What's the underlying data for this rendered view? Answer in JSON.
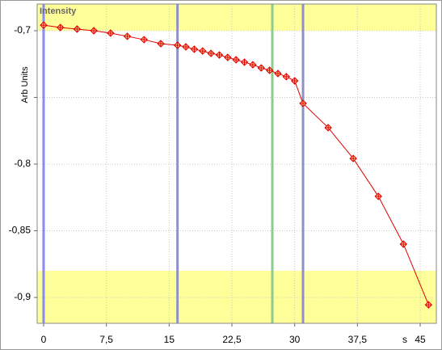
{
  "chart_data": {
    "type": "line",
    "title": "Intensity",
    "ylabel": "Arb Units",
    "xlabel": "s",
    "x": [
      0,
      2,
      4,
      6,
      8,
      10,
      12,
      14,
      16,
      17,
      18,
      19,
      20,
      21,
      22,
      23,
      24,
      25,
      26,
      27,
      28,
      29,
      30,
      31,
      34,
      37,
      40,
      43,
      46
    ],
    "series": [
      {
        "name": "Intensity",
        "color": "#e00000",
        "values": [
          -0.6958,
          -0.6976,
          -0.6988,
          -0.7,
          -0.7018,
          -0.7042,
          -0.7067,
          -0.7097,
          -0.7109,
          -0.7121,
          -0.7139,
          -0.7152,
          -0.717,
          -0.7182,
          -0.72,
          -0.7218,
          -0.7236,
          -0.7255,
          -0.7279,
          -0.7297,
          -0.7321,
          -0.7345,
          -0.7376,
          -0.7545,
          -0.7727,
          -0.7958,
          -0.8242,
          -0.86,
          -0.9055
        ]
      }
    ],
    "xlim": [
      -0.77,
      46.93
    ],
    "ylim": [
      -0.9194,
      -0.68
    ],
    "xticks": [
      0,
      {
        "value": 7.5,
        "label": "7,5"
      },
      15,
      {
        "value": 22.5,
        "label": "22,5"
      },
      30,
      {
        "value": 37.5,
        "label": "37,5"
      },
      45
    ],
    "yticks": [
      {
        "value": -0.7,
        "label": "-0,7"
      },
      {
        "value": -0.75,
        "label": null
      },
      {
        "value": -0.8,
        "label": "-0,8"
      },
      {
        "value": -0.85,
        "label": "-0,85"
      },
      {
        "value": -0.9,
        "label": "-0,9"
      }
    ],
    "grid": true,
    "bands": [
      {
        "min": -0.7,
        "max": -0.68,
        "color": "#ffff99"
      },
      {
        "min": -0.9194,
        "max": -0.88,
        "color": "#ffff99"
      }
    ],
    "cursors": [
      {
        "x": 0,
        "color": "#8c8cf0"
      },
      {
        "x": 16,
        "color": "#9090c8"
      },
      {
        "x": 27.33,
        "color": "#8ccc8c"
      },
      {
        "x": 31,
        "color": "#9090c8"
      }
    ]
  }
}
